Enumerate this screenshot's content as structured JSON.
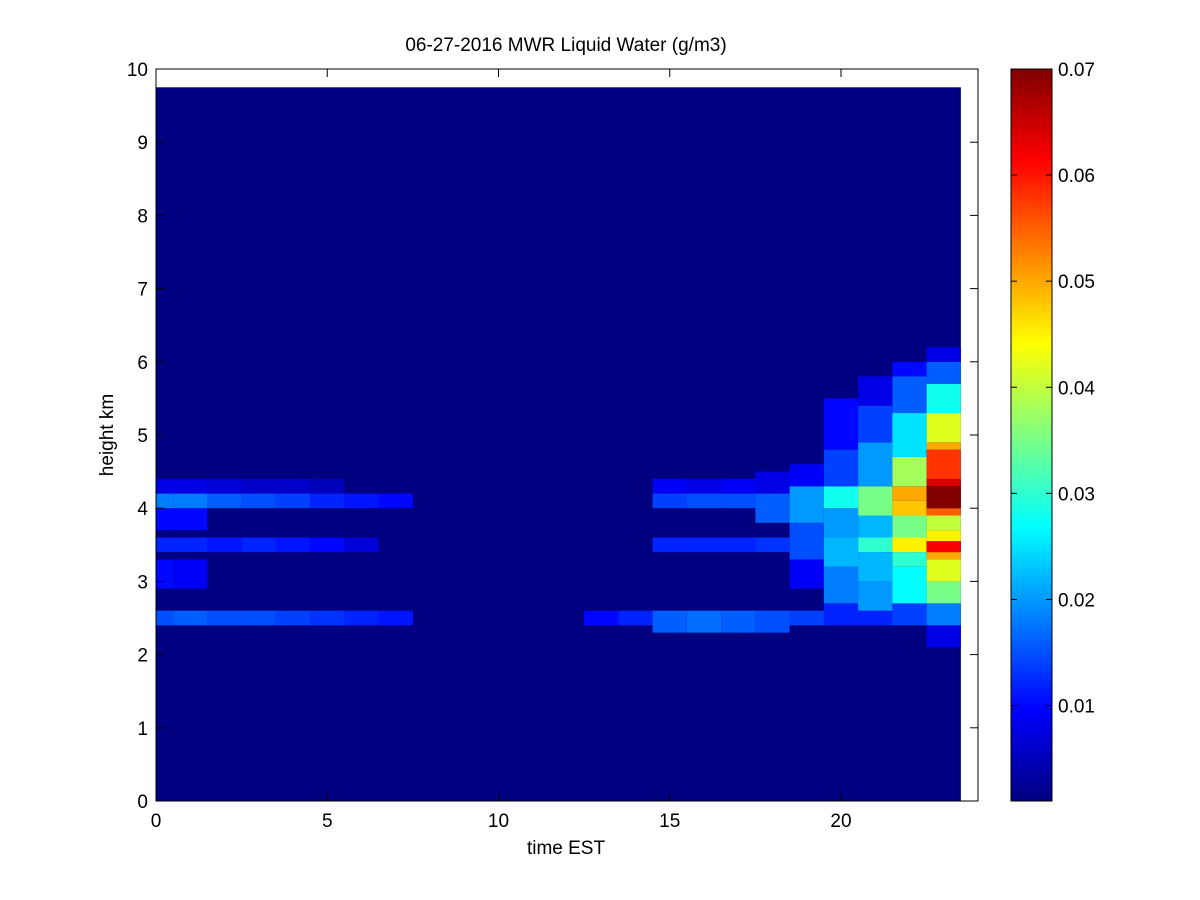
{
  "chart_data": {
    "type": "heatmap",
    "title": "06-27-2016 MWR Liquid Water (g/m3)",
    "xlabel": "time EST",
    "ylabel": "height km",
    "xlim": [
      0,
      24
    ],
    "ylim": [
      0,
      10
    ],
    "x_ticks": [
      0,
      5,
      10,
      15,
      20
    ],
    "y_ticks": [
      0,
      1,
      2,
      3,
      4,
      5,
      6,
      7,
      8,
      9,
      10
    ],
    "colorbar": {
      "colormap": "jet",
      "range": [
        0.001,
        0.07
      ],
      "ticks": [
        0.01,
        0.02,
        0.03,
        0.04,
        0.05,
        0.06,
        0.07
      ],
      "tick_labels": [
        "0.01",
        "0.02",
        "0.03",
        "0.04",
        "0.05",
        "0.06",
        "0.07"
      ]
    },
    "grid": false,
    "time_hours": [
      0,
      1,
      2,
      3,
      4,
      5,
      6,
      7,
      8,
      9,
      10,
      11,
      12,
      13,
      14,
      15,
      16,
      17,
      18,
      19,
      20,
      21,
      22,
      23
    ],
    "height_top_km": 9.75,
    "cloud_layers": [
      {
        "hour": 0,
        "cells": [
          [
            2.4,
            2.6,
            0.015
          ],
          [
            2.9,
            3.3,
            0.01
          ],
          [
            3.4,
            3.6,
            0.012
          ],
          [
            3.7,
            4.0,
            0.01
          ],
          [
            4.0,
            4.2,
            0.018
          ],
          [
            4.2,
            4.4,
            0.008
          ]
        ]
      },
      {
        "hour": 1,
        "cells": [
          [
            2.4,
            2.6,
            0.016
          ],
          [
            2.9,
            3.3,
            0.009
          ],
          [
            3.4,
            3.6,
            0.012
          ],
          [
            3.7,
            4.0,
            0.01
          ],
          [
            4.0,
            4.2,
            0.018
          ],
          [
            4.2,
            4.4,
            0.008
          ]
        ]
      },
      {
        "hour": 2,
        "cells": [
          [
            2.4,
            2.6,
            0.015
          ],
          [
            3.4,
            3.6,
            0.011
          ],
          [
            4.0,
            4.2,
            0.016
          ],
          [
            4.2,
            4.4,
            0.007
          ]
        ]
      },
      {
        "hour": 3,
        "cells": [
          [
            2.4,
            2.6,
            0.015
          ],
          [
            3.4,
            3.6,
            0.012
          ],
          [
            4.0,
            4.2,
            0.015
          ],
          [
            4.2,
            4.4,
            0.006
          ]
        ]
      },
      {
        "hour": 4,
        "cells": [
          [
            2.4,
            2.6,
            0.014
          ],
          [
            3.4,
            3.6,
            0.011
          ],
          [
            4.0,
            4.2,
            0.014
          ],
          [
            4.2,
            4.4,
            0.006
          ]
        ]
      },
      {
        "hour": 5,
        "cells": [
          [
            2.4,
            2.6,
            0.013
          ],
          [
            3.4,
            3.6,
            0.01
          ],
          [
            4.0,
            4.2,
            0.012
          ],
          [
            4.2,
            4.4,
            0.005
          ]
        ]
      },
      {
        "hour": 6,
        "cells": [
          [
            2.4,
            2.6,
            0.012
          ],
          [
            3.4,
            3.6,
            0.007
          ],
          [
            4.0,
            4.2,
            0.011
          ]
        ]
      },
      {
        "hour": 7,
        "cells": [
          [
            2.4,
            2.6,
            0.011
          ],
          [
            4.0,
            4.2,
            0.01
          ]
        ]
      },
      {
        "hour": 13,
        "cells": [
          [
            2.4,
            2.6,
            0.01
          ]
        ]
      },
      {
        "hour": 14,
        "cells": [
          [
            2.4,
            2.6,
            0.012
          ]
        ]
      },
      {
        "hour": 15,
        "cells": [
          [
            2.3,
            2.6,
            0.016
          ],
          [
            3.4,
            3.6,
            0.012
          ],
          [
            4.0,
            4.2,
            0.014
          ],
          [
            4.2,
            4.4,
            0.009
          ]
        ]
      },
      {
        "hour": 16,
        "cells": [
          [
            2.3,
            2.6,
            0.017
          ],
          [
            3.4,
            3.6,
            0.012
          ],
          [
            4.0,
            4.2,
            0.015
          ],
          [
            4.2,
            4.4,
            0.008
          ]
        ]
      },
      {
        "hour": 17,
        "cells": [
          [
            2.3,
            2.6,
            0.016
          ],
          [
            3.4,
            3.6,
            0.012
          ],
          [
            4.0,
            4.2,
            0.015
          ],
          [
            4.2,
            4.4,
            0.009
          ]
        ]
      },
      {
        "hour": 18,
        "cells": [
          [
            2.3,
            2.6,
            0.015
          ],
          [
            3.4,
            3.6,
            0.013
          ],
          [
            3.8,
            4.2,
            0.016
          ],
          [
            4.2,
            4.5,
            0.008
          ]
        ]
      },
      {
        "hour": 19,
        "cells": [
          [
            2.4,
            2.6,
            0.014
          ],
          [
            2.9,
            3.3,
            0.009
          ],
          [
            3.3,
            3.8,
            0.015
          ],
          [
            3.8,
            4.3,
            0.02
          ],
          [
            4.3,
            4.6,
            0.009
          ]
        ]
      },
      {
        "hour": 20,
        "cells": [
          [
            2.4,
            2.7,
            0.012
          ],
          [
            2.7,
            3.2,
            0.018
          ],
          [
            3.2,
            3.6,
            0.022
          ],
          [
            3.6,
            4.0,
            0.02
          ],
          [
            4.0,
            4.3,
            0.028
          ],
          [
            4.3,
            4.8,
            0.014
          ],
          [
            4.8,
            5.5,
            0.01
          ]
        ]
      },
      {
        "hour": 21,
        "cells": [
          [
            2.4,
            2.6,
            0.012
          ],
          [
            2.6,
            3.0,
            0.02
          ],
          [
            3.0,
            3.4,
            0.022
          ],
          [
            3.4,
            3.6,
            0.03
          ],
          [
            3.6,
            3.9,
            0.022
          ],
          [
            3.9,
            4.3,
            0.035
          ],
          [
            4.3,
            4.9,
            0.02
          ],
          [
            4.9,
            5.4,
            0.014
          ],
          [
            5.4,
            5.8,
            0.008
          ]
        ]
      },
      {
        "hour": 22,
        "cells": [
          [
            2.4,
            2.7,
            0.014
          ],
          [
            2.7,
            3.2,
            0.027
          ],
          [
            3.2,
            3.4,
            0.03
          ],
          [
            3.4,
            3.6,
            0.045
          ],
          [
            3.6,
            3.9,
            0.035
          ],
          [
            3.9,
            4.1,
            0.048
          ],
          [
            4.1,
            4.3,
            0.05
          ],
          [
            4.3,
            4.7,
            0.038
          ],
          [
            4.7,
            5.3,
            0.025
          ],
          [
            5.3,
            5.8,
            0.016
          ],
          [
            5.8,
            6.0,
            0.01
          ]
        ]
      },
      {
        "hour": 23,
        "cells": [
          [
            2.1,
            2.4,
            0.008
          ],
          [
            2.4,
            2.7,
            0.018
          ],
          [
            2.7,
            3.0,
            0.035
          ],
          [
            3.0,
            3.3,
            0.042
          ],
          [
            3.3,
            3.4,
            0.05
          ],
          [
            3.4,
            3.55,
            0.062
          ],
          [
            3.55,
            3.7,
            0.045
          ],
          [
            3.7,
            3.9,
            0.04
          ],
          [
            3.9,
            4.0,
            0.055
          ],
          [
            4.0,
            4.3,
            0.07
          ],
          [
            4.3,
            4.4,
            0.064
          ],
          [
            4.4,
            4.8,
            0.058
          ],
          [
            4.8,
            4.9,
            0.05
          ],
          [
            4.9,
            5.3,
            0.042
          ],
          [
            5.3,
            5.7,
            0.028
          ],
          [
            5.7,
            6.0,
            0.016
          ],
          [
            6.0,
            6.2,
            0.008
          ]
        ]
      }
    ]
  }
}
